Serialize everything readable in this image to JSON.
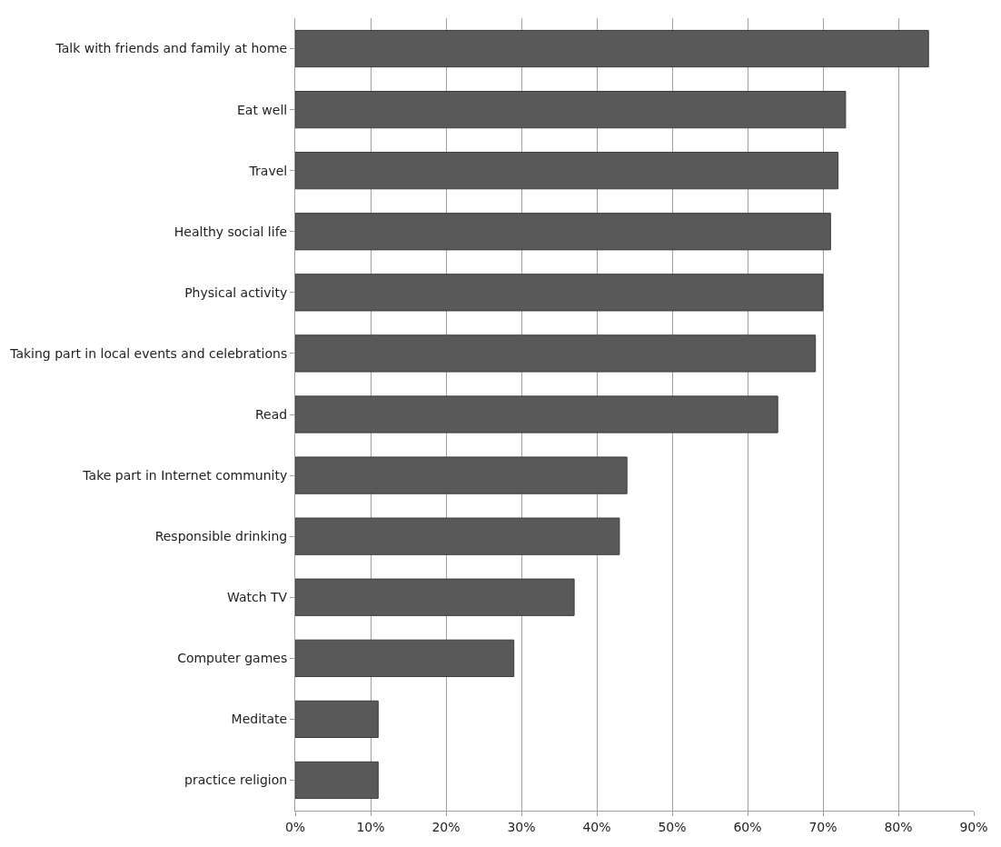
{
  "chart_data": {
    "type": "bar",
    "orientation": "horizontal",
    "categories": [
      "Talk with friends and family at home",
      "Eat well",
      "Travel",
      "Healthy social life",
      "Physical activity",
      "Taking part in local events and celebrations",
      "Read",
      "Take part in Internet community",
      "Responsible drinking",
      "Watch TV",
      "Computer games",
      "Meditate",
      "practice religion"
    ],
    "values": [
      84,
      73,
      72,
      71,
      70,
      69,
      64,
      44,
      43,
      37,
      29,
      11,
      11
    ],
    "color": "#595959",
    "xlim": [
      0,
      90
    ],
    "xticks": [
      {
        "value": 0,
        "label": "0%"
      },
      {
        "value": 10,
        "label": "10%"
      },
      {
        "value": 20,
        "label": "20%"
      },
      {
        "value": 30,
        "label": "30%"
      },
      {
        "value": 40,
        "label": "40%"
      },
      {
        "value": 50,
        "label": "50%"
      },
      {
        "value": 60,
        "label": "60%"
      },
      {
        "value": 70,
        "label": "70%"
      },
      {
        "value": 80,
        "label": "80%"
      },
      {
        "value": 90,
        "label": "90%"
      }
    ],
    "grid": "x"
  }
}
